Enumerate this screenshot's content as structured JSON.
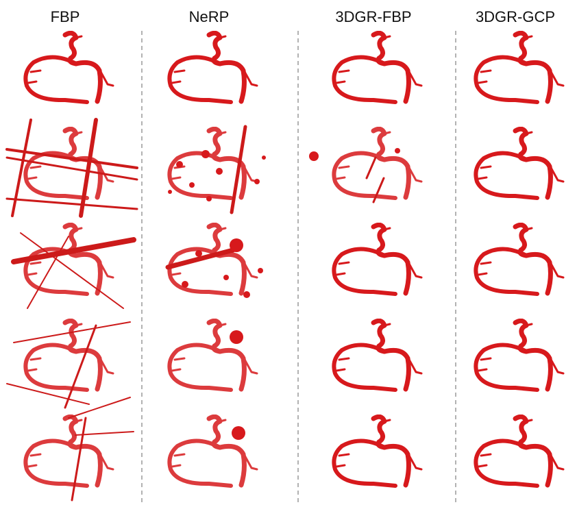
{
  "columns": [
    "FBP",
    "NeRP",
    "3DGR-FBP",
    "3DGR-GCP"
  ]
}
